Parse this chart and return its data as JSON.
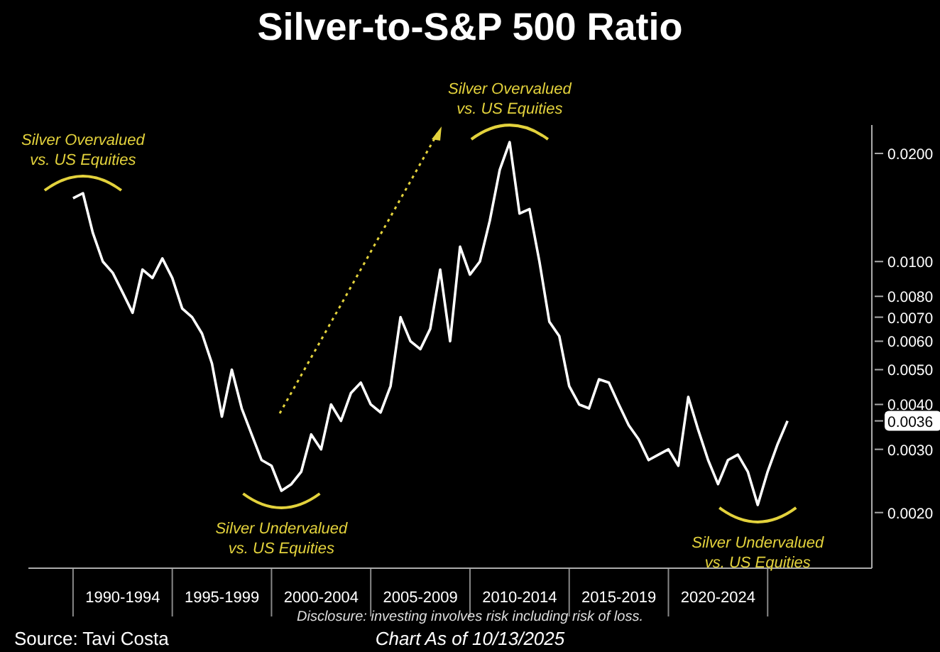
{
  "chart_data": {
    "type": "line",
    "title": "Silver-to-S&P 500 Ratio",
    "log": "y",
    "categories": [
      null,
      null,
      null,
      null,
      null,
      null,
      null,
      null,
      null,
      "1990-1994",
      null,
      null,
      null,
      null,
      null,
      null,
      null,
      null,
      null,
      "1995-1999",
      null,
      null,
      null,
      null,
      null,
      null,
      null,
      null,
      null,
      "2000-2004",
      null,
      null,
      null,
      null,
      null,
      null,
      null,
      null,
      null,
      "2005-2009",
      null,
      null,
      null,
      null,
      null,
      null,
      null,
      null,
      null,
      "2010-2014",
      null,
      null,
      null,
      null,
      null,
      null,
      null,
      null,
      null,
      "2015-2019",
      null,
      null,
      null,
      null,
      null,
      null,
      null,
      null,
      null,
      "2020-2024",
      null,
      null,
      null,
      null,
      null,
      null,
      null,
      null,
      null,
      null,
      null,
      null,
      null,
      null,
      null
    ],
    "ylim": [
      0.0014,
      0.024
    ],
    "yticks": [
      {
        "value": 0.002,
        "label": "0.0020"
      },
      {
        "value": 0.003,
        "label": "0.0030"
      },
      {
        "value": 0.0036,
        "label": "0.0036"
      },
      {
        "value": 0.004,
        "label": "0.0040"
      },
      {
        "value": 0.005,
        "label": "0.0050"
      },
      {
        "value": 0.006,
        "label": "0.0060"
      },
      {
        "value": 0.007,
        "label": "0.0070"
      },
      {
        "value": 0.008,
        "label": "0.0080"
      },
      {
        "value": 0.01,
        "label": "0.0100"
      },
      {
        "value": 0.02,
        "label": "0.0200"
      }
    ],
    "series": [
      {
        "color": "#ffffff",
        "values": [
          null,
          null,
          null,
          null,
          0.015,
          0.0155,
          0.012,
          0.01,
          0.0093,
          0.0082,
          0.0072,
          0.0095,
          0.009,
          0.0102,
          0.009,
          0.0074,
          0.007,
          0.0063,
          0.0052,
          0.0037,
          0.005,
          0.0039,
          0.0033,
          0.0028,
          0.0027,
          0.0023,
          0.0024,
          0.0026,
          0.0033,
          0.003,
          0.004,
          0.0036,
          0.0043,
          0.0046,
          0.004,
          0.0038,
          0.0045,
          0.007,
          0.006,
          0.0057,
          0.0065,
          0.0095,
          0.006,
          0.011,
          0.0092,
          0.01,
          0.013,
          0.018,
          0.0215,
          0.0136,
          0.014,
          0.01,
          0.0068,
          0.0062,
          0.0045,
          0.004,
          0.0039,
          0.0047,
          0.0046,
          0.004,
          0.0035,
          0.0032,
          0.0028,
          0.0029,
          0.003,
          0.0027,
          0.0042,
          0.0034,
          0.0028,
          0.0024,
          0.0028,
          0.0029,
          0.0026,
          0.0021,
          0.0026,
          0.0031,
          0.0036,
          null,
          null,
          null,
          null,
          null,
          null,
          null,
          null
        ]
      }
    ],
    "annotations": [
      {
        "text": "Silver Overvalued\nvs. US Equities",
        "y": 0.0155
      },
      {
        "text": "Silver Undervalued\nvs. US Equities",
        "y": 0.0023
      },
      {
        "text": "Silver Overvalued\nvs. US Equities",
        "y": 0.0215
      },
      {
        "text": "Silver Undervalued\nvs. US Equities",
        "y": 0.0021
      },
      "Disclosure: investing involves risk including risk of loss.",
      "Source: Tavi Costa",
      "Chart As of 10/13/2025"
    ]
  }
}
